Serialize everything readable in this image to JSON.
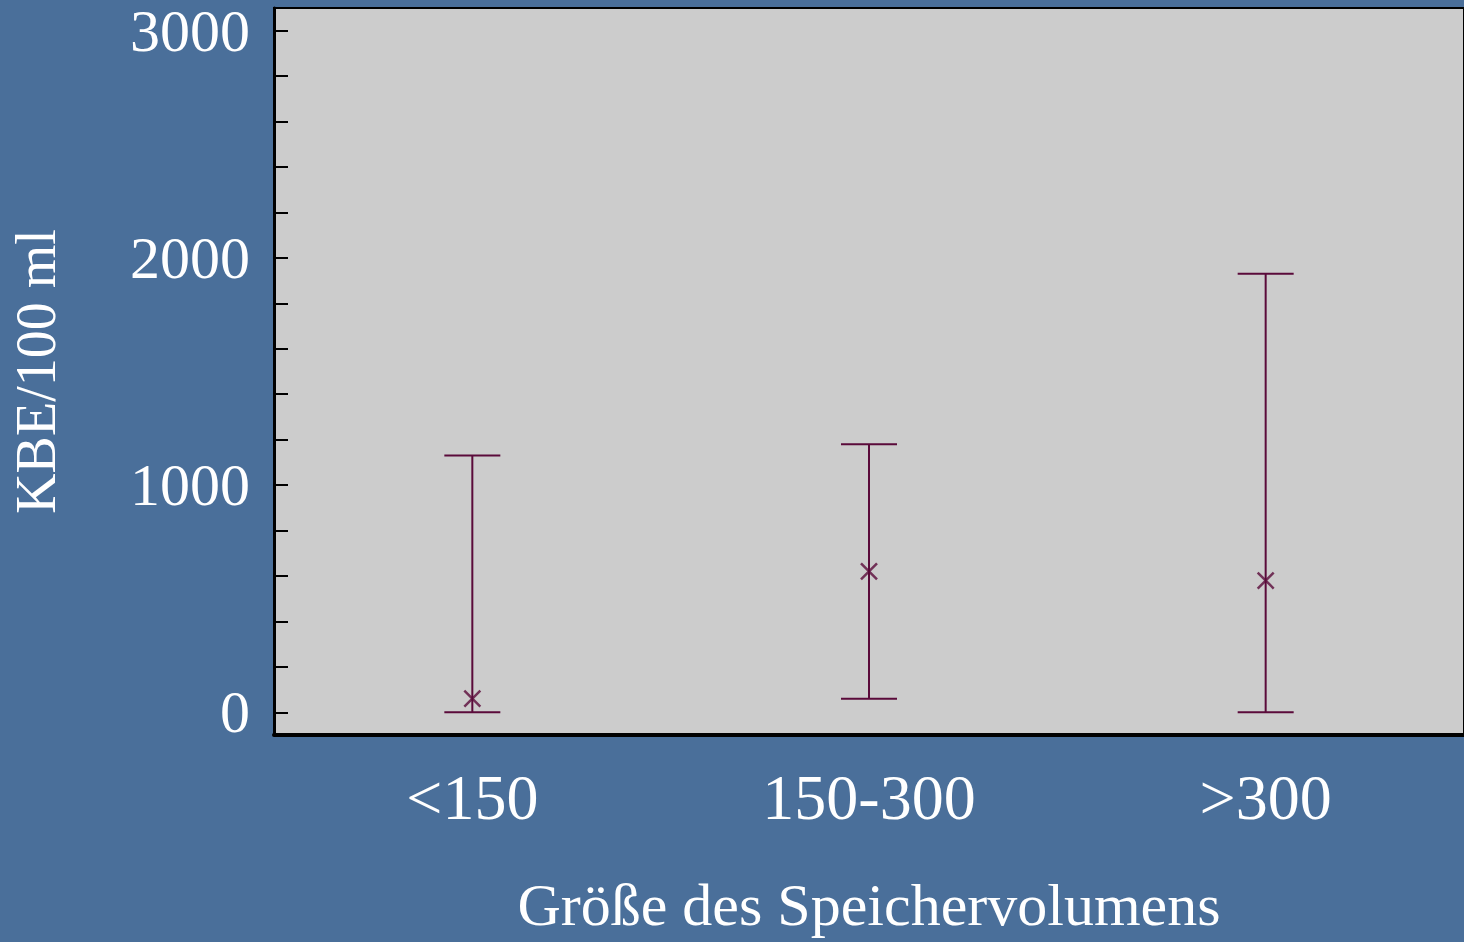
{
  "chart_data": {
    "type": "scatter",
    "xlabel": "Größe des Speichervolumens",
    "ylabel": "KBE/100 ml",
    "categories": [
      "<150",
      "150-300",
      ">300"
    ],
    "series": [
      {
        "color": "#5a0a3a",
        "values": [
          60,
          620,
          580
        ],
        "errors": [
          [
            0,
            1130
          ],
          [
            60,
            1180
          ],
          [
            0,
            1930
          ]
        ]
      }
    ],
    "ylim": [
      -100,
      3100
    ],
    "yticks": [
      0,
      {
        "value": 200,
        "label": null
      },
      {
        "value": 400,
        "label": null
      },
      {
        "value": 600,
        "label": null
      },
      {
        "value": 800,
        "label": null
      },
      1000,
      {
        "value": 1200,
        "label": null
      },
      {
        "value": 1400,
        "label": null
      },
      {
        "value": 1600,
        "label": null
      },
      {
        "value": 1800,
        "label": null
      },
      2000,
      {
        "value": 2200,
        "label": null
      },
      {
        "value": 2400,
        "label": null
      },
      {
        "value": 2600,
        "label": null
      },
      {
        "value": 2800,
        "label": null
      },
      3000
    ],
    "marker": "cross"
  }
}
